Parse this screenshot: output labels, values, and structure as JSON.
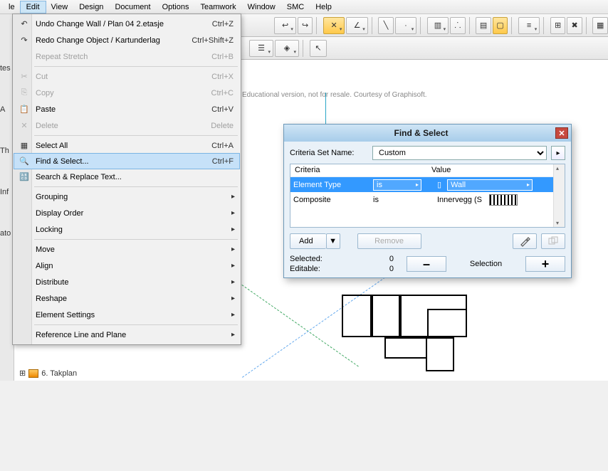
{
  "menubar": {
    "items": [
      "le",
      "Edit",
      "View",
      "Design",
      "Document",
      "Options",
      "Teamwork",
      "Window",
      "SMC",
      "Help"
    ],
    "open_index": 1
  },
  "left_labels": [
    "tes",
    "A",
    "Th",
    "Inf",
    "ato"
  ],
  "watermark": "Educational version, not for resale. Courtesy of Graphisoft.",
  "edit_menu": {
    "items": [
      {
        "icon": "↶",
        "label": "Undo Change Wall / Plan 04 2.etasje",
        "shortcut": "Ctrl+Z"
      },
      {
        "icon": "↷",
        "label": "Redo Change Object / Kartunderlag",
        "shortcut": "Ctrl+Shift+Z"
      },
      {
        "icon": "",
        "label": "Repeat Stretch",
        "shortcut": "Ctrl+B",
        "dis": true
      },
      {
        "sep": true
      },
      {
        "icon": "✂",
        "label": "Cut",
        "shortcut": "Ctrl+X",
        "dis": true
      },
      {
        "icon": "⎘",
        "label": "Copy",
        "shortcut": "Ctrl+C",
        "dis": true
      },
      {
        "icon": "📋",
        "label": "Paste",
        "shortcut": "Ctrl+V"
      },
      {
        "icon": "✕",
        "label": "Delete",
        "shortcut": "Delete",
        "dis": true
      },
      {
        "sep": true
      },
      {
        "icon": "▦",
        "label": "Select All",
        "shortcut": "Ctrl+A"
      },
      {
        "icon": "🔍",
        "label": "Find & Select...",
        "shortcut": "Ctrl+F",
        "sel": true
      },
      {
        "icon": "🔠",
        "label": "Search & Replace Text..."
      },
      {
        "sep": true
      },
      {
        "label": "Grouping",
        "sub": true
      },
      {
        "label": "Display Order",
        "sub": true
      },
      {
        "label": "Locking",
        "sub": true
      },
      {
        "sep": true
      },
      {
        "label": "Move",
        "sub": true
      },
      {
        "label": "Align",
        "sub": true
      },
      {
        "label": "Distribute",
        "sub": true
      },
      {
        "label": "Reshape",
        "sub": true
      },
      {
        "label": "Element Settings",
        "sub": true
      },
      {
        "sep": true
      },
      {
        "label": "Reference Line and Plane",
        "sub": true
      }
    ]
  },
  "dialog": {
    "title": "Find & Select",
    "criteria_set_label": "Criteria Set Name:",
    "criteria_set_value": "Custom",
    "headers": {
      "criteria": "Criteria",
      "value": "Value"
    },
    "rows": [
      {
        "criteria": "Element Type",
        "op": "is",
        "value": "Wall",
        "selected": true,
        "icon": "wall"
      },
      {
        "criteria": "Composite",
        "op": "is",
        "value": "Innervegg (S",
        "selected": false,
        "swatch": true
      }
    ],
    "add": "Add",
    "remove": "Remove",
    "selected_label": "Selected:",
    "selected_value": "0",
    "editable_label": "Editable:",
    "editable_value": "0",
    "selection_label": "Selection"
  },
  "bottom_tab": "6. Takplan"
}
